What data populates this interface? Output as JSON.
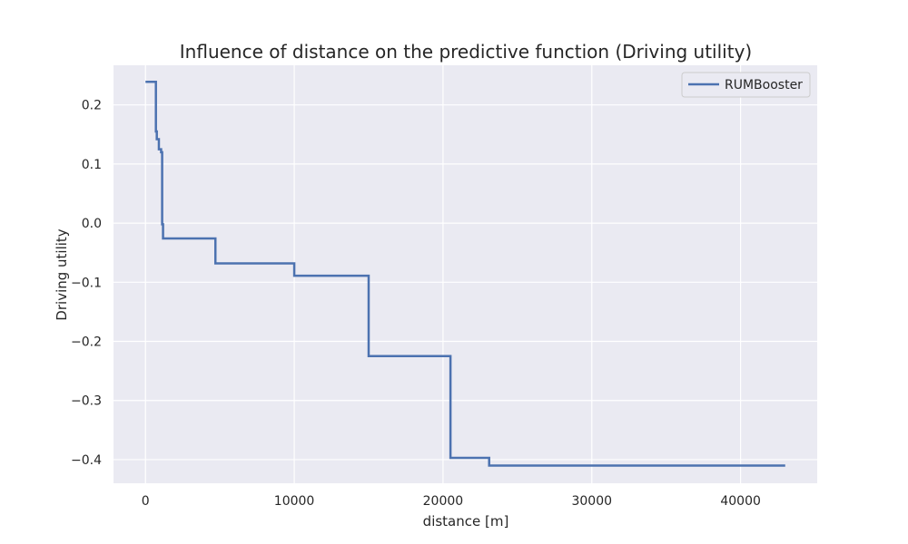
{
  "chart_data": {
    "type": "line",
    "title": "Influence of distance on the predictive function (Driving utility)",
    "xlabel": "distance [m]",
    "ylabel": "Driving utility",
    "xlim": [
      -2150,
      45150
    ],
    "ylim": [
      -0.44,
      0.267
    ],
    "x_ticks": [
      0,
      10000,
      20000,
      30000,
      40000
    ],
    "x_tick_labels": [
      "0",
      "10000",
      "20000",
      "30000",
      "40000"
    ],
    "y_ticks": [
      0.2,
      0.1,
      0.0,
      -0.1,
      -0.2,
      -0.3,
      -0.4
    ],
    "y_tick_labels": [
      "0.2",
      "0.1",
      "0.0",
      "−0.1",
      "−0.2",
      "−0.3",
      "−0.4"
    ],
    "grid": true,
    "legend_position": "top-right",
    "series": [
      {
        "name": "RUMBooster",
        "color": "#4c72b0",
        "x": [
          0,
          700,
          700,
          760,
          760,
          900,
          900,
          1050,
          1050,
          1120,
          1120,
          1180,
          1180,
          4700,
          4700,
          10000,
          10000,
          15000,
          15000,
          20500,
          20500,
          23100,
          23100,
          43000
        ],
        "y": [
          0.239,
          0.239,
          0.155,
          0.155,
          0.142,
          0.142,
          0.125,
          0.125,
          0.12,
          0.12,
          -0.002,
          -0.002,
          -0.026,
          -0.026,
          -0.068,
          -0.068,
          -0.089,
          -0.089,
          -0.225,
          -0.225,
          -0.397,
          -0.397,
          -0.41,
          -0.41
        ]
      }
    ]
  }
}
